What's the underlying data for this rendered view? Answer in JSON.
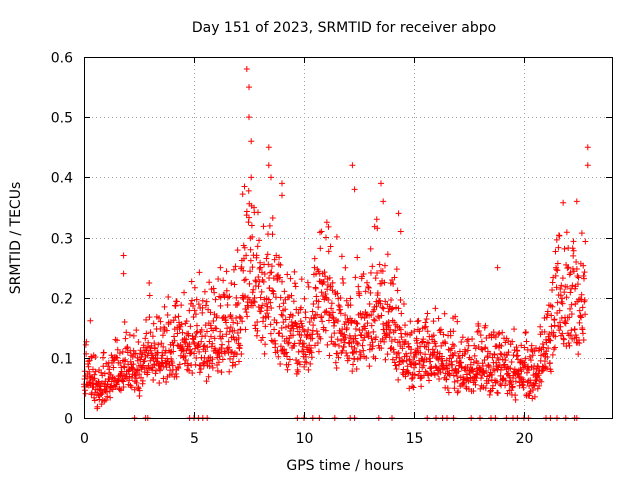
{
  "chart_data": {
    "type": "scatter",
    "title": "Day 151 of 2023, SRMTID for receiver abpo",
    "xlabel": "GPS time / hours",
    "ylabel": "SRMTID / TECUs",
    "xlim": [
      0,
      24
    ],
    "ylim": [
      0,
      0.6
    ],
    "xticks": [
      0,
      5,
      10,
      15,
      20
    ],
    "yticks": [
      0,
      0.1,
      0.2,
      0.3,
      0.4,
      0.5,
      0.6
    ],
    "xtick_labels": [
      "0",
      "5",
      "10",
      "15",
      "20"
    ],
    "ytick_labels": [
      "0",
      "0.1",
      "0.2",
      "0.3",
      "0.4",
      "0.5",
      "0.6"
    ],
    "grid": true,
    "marker": "+",
    "color": "#ff0000",
    "series": [
      {
        "name": "SRMTID",
        "profile": [
          [
            0.0,
            0.08
          ],
          [
            0.3,
            0.09
          ],
          [
            0.6,
            0.05
          ],
          [
            1.0,
            0.07
          ],
          [
            1.5,
            0.08
          ],
          [
            2.0,
            0.1
          ],
          [
            2.5,
            0.09
          ],
          [
            3.0,
            0.13
          ],
          [
            3.5,
            0.1
          ],
          [
            4.0,
            0.12
          ],
          [
            4.5,
            0.14
          ],
          [
            5.0,
            0.15
          ],
          [
            5.5,
            0.13
          ],
          [
            6.0,
            0.14
          ],
          [
            6.5,
            0.16
          ],
          [
            7.0,
            0.16
          ],
          [
            7.3,
            0.25
          ],
          [
            7.5,
            0.3
          ],
          [
            7.8,
            0.26
          ],
          [
            8.0,
            0.22
          ],
          [
            8.3,
            0.2
          ],
          [
            8.6,
            0.22
          ],
          [
            9.0,
            0.18
          ],
          [
            9.5,
            0.15
          ],
          [
            10.0,
            0.13
          ],
          [
            10.5,
            0.18
          ],
          [
            11.0,
            0.22
          ],
          [
            11.5,
            0.17
          ],
          [
            12.0,
            0.15
          ],
          [
            12.5,
            0.16
          ],
          [
            13.0,
            0.18
          ],
          [
            13.5,
            0.2
          ],
          [
            14.0,
            0.16
          ],
          [
            14.5,
            0.12
          ],
          [
            15.0,
            0.1
          ],
          [
            15.5,
            0.11
          ],
          [
            16.0,
            0.12
          ],
          [
            16.5,
            0.1
          ],
          [
            17.0,
            0.1
          ],
          [
            17.5,
            0.09
          ],
          [
            18.0,
            0.1
          ],
          [
            18.5,
            0.09
          ],
          [
            19.0,
            0.09
          ],
          [
            19.5,
            0.08
          ],
          [
            20.0,
            0.08
          ],
          [
            20.5,
            0.07
          ],
          [
            21.0,
            0.12
          ],
          [
            21.5,
            0.2
          ],
          [
            22.0,
            0.22
          ],
          [
            22.5,
            0.2
          ],
          [
            22.8,
            0.25
          ]
        ],
        "peaks": [
          [
            7.4,
            0.58
          ],
          [
            7.5,
            0.55
          ],
          [
            7.5,
            0.5
          ],
          [
            7.6,
            0.46
          ],
          [
            7.6,
            0.4
          ],
          [
            8.4,
            0.45
          ],
          [
            8.4,
            0.42
          ],
          [
            8.5,
            0.4
          ],
          [
            9.0,
            0.39
          ],
          [
            9.0,
            0.37
          ],
          [
            12.2,
            0.42
          ],
          [
            12.3,
            0.38
          ],
          [
            13.5,
            0.39
          ],
          [
            13.6,
            0.36
          ],
          [
            1.8,
            0.27
          ],
          [
            1.8,
            0.24
          ],
          [
            22.9,
            0.45
          ],
          [
            22.9,
            0.42
          ],
          [
            22.4,
            0.36
          ],
          [
            18.8,
            0.25
          ],
          [
            10.8,
            0.31
          ],
          [
            11.0,
            0.3
          ],
          [
            14.3,
            0.34
          ],
          [
            14.4,
            0.31
          ],
          [
            6.2,
            0.25
          ]
        ],
        "zero_marks": [
          2.3,
          2.8,
          2.9,
          4.8,
          5.0,
          5.2,
          5.4,
          5.6,
          9.7,
          10.0,
          10.4,
          10.7,
          11.4,
          12.1,
          12.3,
          13.4,
          14.0,
          15.6,
          16.0,
          16.3,
          16.5,
          16.8,
          17.6,
          18.0,
          18.5,
          18.7,
          19.2,
          19.5,
          19.7,
          20.0,
          20.2,
          21.0,
          21.2,
          21.5,
          21.9,
          22.3,
          22.4
        ]
      }
    ]
  }
}
